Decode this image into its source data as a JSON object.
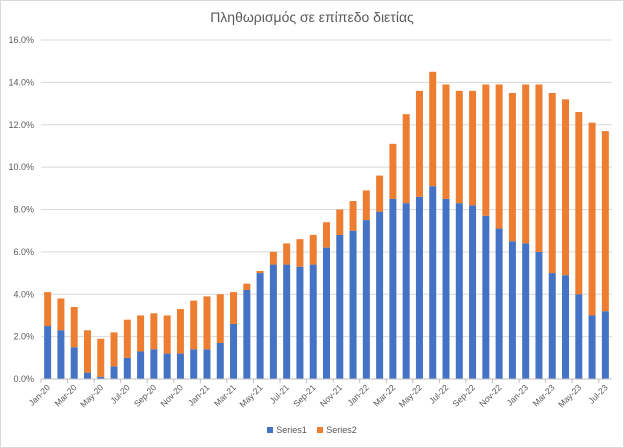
{
  "chart_data": {
    "type": "bar",
    "stacked": true,
    "title": "Πληθωρισμός σε επίπεδο διετίας",
    "xlabel": "",
    "ylabel": "",
    "ylim": [
      0,
      16
    ],
    "y_ticks": [
      "0.0%",
      "2.0%",
      "4.0%",
      "6.0%",
      "8.0%",
      "10.0%",
      "12.0%",
      "14.0%",
      "16.0%"
    ],
    "grid": true,
    "legend_position": "bottom",
    "categories": [
      "Jan-20",
      "Feb-20",
      "Mar-20",
      "Apr-20",
      "May-20",
      "Jun-20",
      "Jul-20",
      "Aug-20",
      "Sep-20",
      "Oct-20",
      "Nov-20",
      "Dec-20",
      "Jan-21",
      "Feb-21",
      "Mar-21",
      "Apr-21",
      "May-21",
      "Jun-21",
      "Jul-21",
      "Aug-21",
      "Sep-21",
      "Oct-21",
      "Nov-21",
      "Dec-21",
      "Jan-22",
      "Feb-22",
      "Mar-22",
      "Apr-22",
      "May-22",
      "Jun-22",
      "Jul-22",
      "Aug-22",
      "Sep-22",
      "Oct-22",
      "Nov-22",
      "Dec-22",
      "Jan-23",
      "Feb-23",
      "Mar-23",
      "Apr-23",
      "May-23",
      "Jun-23",
      "Jul-23"
    ],
    "x_tick_labels": [
      "Jan-20",
      "Mar-20",
      "May-20",
      "Jul-20",
      "Sep-20",
      "Nov-20",
      "Jan-21",
      "Mar-21",
      "May-21",
      "Jul-21",
      "Sep-21",
      "Nov-21",
      "Jan-22",
      "Mar-22",
      "May-22",
      "Jul-22",
      "Sep-22",
      "Nov-22",
      "Jan-23",
      "Mar-23",
      "May-23",
      "Jul-23"
    ],
    "series": [
      {
        "name": "Series1",
        "color": "#4472c4",
        "values": [
          2.5,
          2.3,
          1.5,
          0.3,
          0.1,
          0.6,
          1.0,
          1.3,
          1.4,
          1.2,
          1.2,
          1.4,
          1.4,
          1.7,
          2.6,
          4.2,
          5.0,
          5.4,
          5.4,
          5.3,
          5.4,
          6.2,
          6.8,
          7.0,
          7.5,
          7.9,
          8.5,
          8.3,
          8.6,
          9.1,
          8.5,
          8.3,
          8.2,
          7.7,
          7.1,
          6.5,
          6.4,
          6.0,
          5.0,
          4.9,
          4.0,
          3.0,
          3.2
        ]
      },
      {
        "name": "Series2",
        "color": "#ed7d31",
        "values": [
          1.6,
          1.5,
          1.9,
          2.0,
          1.8,
          1.6,
          1.8,
          1.7,
          1.7,
          1.8,
          2.1,
          2.3,
          2.5,
          2.3,
          1.5,
          0.3,
          0.1,
          0.6,
          1.0,
          1.3,
          1.4,
          1.2,
          1.2,
          1.4,
          1.4,
          1.7,
          2.6,
          4.2,
          5.0,
          5.4,
          5.4,
          5.3,
          5.4,
          6.2,
          6.8,
          7.0,
          7.5,
          7.9,
          8.5,
          8.3,
          8.6,
          9.1,
          8.5
        ]
      }
    ]
  }
}
